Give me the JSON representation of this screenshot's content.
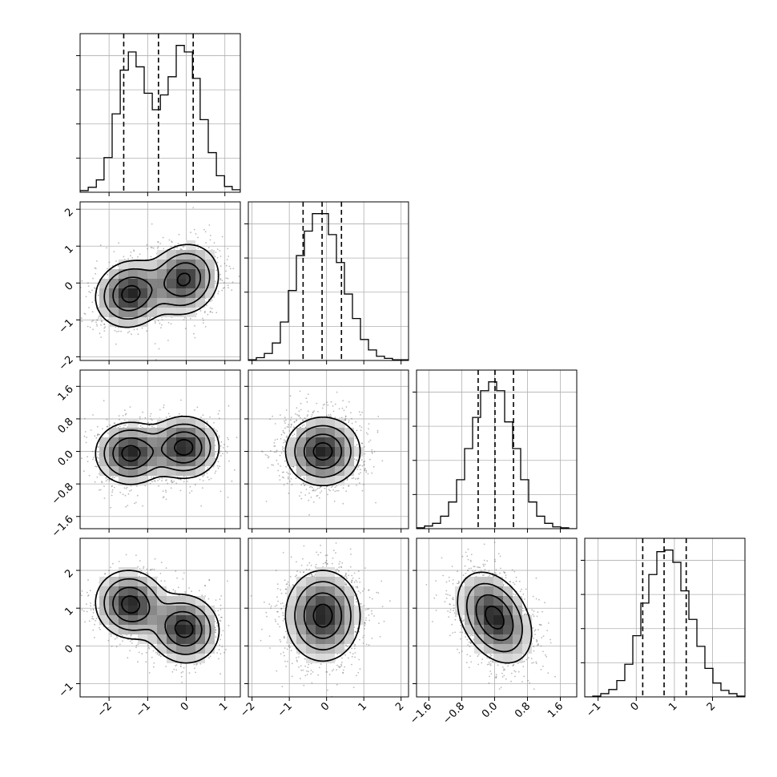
{
  "chart_data": {
    "type": "corner",
    "ndim": 4,
    "grid": true,
    "axes": [
      {
        "range": [
          -2.75,
          1.4
        ],
        "ticks": [
          -2,
          -1,
          0,
          1
        ],
        "tick_labels": [
          "−2",
          "−1",
          "0",
          "1"
        ],
        "quantiles": [
          -1.62,
          -0.72,
          0.18
        ],
        "hist_bins": [
          -2.75,
          -2.54,
          -2.33,
          -2.13,
          -1.92,
          -1.71,
          -1.5,
          -1.3,
          -1.09,
          -0.88,
          -0.67,
          -0.47,
          -0.26,
          -0.05,
          0.16,
          0.36,
          0.57,
          0.78,
          0.99,
          1.19,
          1.4
        ],
        "hist_counts": [
          2,
          6,
          15,
          42,
          95,
          148,
          170,
          152,
          120,
          100,
          118,
          140,
          178,
          170,
          138,
          88,
          48,
          20,
          7,
          3
        ]
      },
      {
        "range": [
          -2.1,
          2.2
        ],
        "ticks": [
          -2,
          -1,
          0,
          1,
          2
        ],
        "tick_labels": [
          "−2",
          "−1",
          "0",
          "1",
          "2"
        ],
        "quantiles": [
          -0.63,
          -0.12,
          0.4
        ],
        "hist_bins": [
          -2.1,
          -1.885,
          -1.67,
          -1.455,
          -1.24,
          -1.025,
          -0.81,
          -0.595,
          -0.38,
          -0.165,
          0.05,
          0.265,
          0.48,
          0.695,
          0.91,
          1.125,
          1.34,
          1.555,
          1.77,
          1.985,
          2.2
        ],
        "hist_counts": [
          1,
          4,
          10,
          25,
          55,
          100,
          150,
          185,
          210,
          210,
          180,
          140,
          95,
          60,
          30,
          15,
          6,
          3,
          1,
          1
        ]
      },
      {
        "range": [
          -1.9,
          2.0
        ],
        "ticks": [
          -1.6,
          -0.8,
          0.0,
          0.8,
          1.6
        ],
        "tick_labels": [
          "−1.6",
          "−0.8",
          "0.0",
          "0.8",
          "1.6"
        ],
        "quantiles": [
          -0.4,
          0.01,
          0.46
        ],
        "hist_bins": [
          -1.9,
          -1.705,
          -1.51,
          -1.315,
          -1.12,
          -0.925,
          -0.73,
          -0.535,
          -0.34,
          -0.145,
          0.05,
          0.245,
          0.44,
          0.635,
          0.83,
          1.025,
          1.22,
          1.415,
          1.61,
          1.805,
          2.0
        ],
        "hist_counts": [
          1,
          3,
          6,
          14,
          30,
          55,
          90,
          125,
          155,
          165,
          155,
          120,
          90,
          55,
          30,
          14,
          6,
          2,
          1,
          0
        ]
      },
      {
        "range": [
          -1.35,
          2.85
        ],
        "ticks": [
          -1,
          0,
          1,
          2
        ],
        "tick_labels": [
          "−1",
          "0",
          "1",
          "2"
        ],
        "quantiles": [
          0.17,
          0.73,
          1.31
        ],
        "hist_bins": [
          -1.35,
          -1.14,
          -0.93,
          -0.72,
          -0.51,
          -0.3,
          -0.09,
          0.12,
          0.33,
          0.54,
          0.75,
          0.96,
          1.17,
          1.38,
          1.59,
          1.8,
          2.01,
          2.22,
          2.43,
          2.64,
          2.85
        ],
        "hist_counts": [
          0,
          1,
          4,
          9,
          20,
          40,
          75,
          115,
          150,
          178,
          180,
          165,
          130,
          95,
          62,
          35,
          17,
          8,
          4,
          1
        ]
      }
    ],
    "pairs": [
      {
        "x_axis": 0,
        "y_axis": 1,
        "modes": [
          {
            "center": [
              -1.45,
              -0.3
            ],
            "sd": [
              0.45,
              0.45
            ],
            "corr": 0.1,
            "weight": 0.5
          },
          {
            "center": [
              -0.05,
              0.1
            ],
            "sd": [
              0.45,
              0.48
            ],
            "corr": 0.1,
            "weight": 0.5
          }
        ]
      },
      {
        "x_axis": 0,
        "y_axis": 2,
        "modes": [
          {
            "center": [
              -1.45,
              -0.05
            ],
            "sd": [
              0.45,
              0.38
            ],
            "corr": 0.0,
            "weight": 0.5
          },
          {
            "center": [
              -0.05,
              0.1
            ],
            "sd": [
              0.45,
              0.38
            ],
            "corr": 0.0,
            "weight": 0.5
          }
        ]
      },
      {
        "x_axis": 1,
        "y_axis": 2,
        "modes": [
          {
            "center": [
              -0.1,
              0.0
            ],
            "sd": [
              0.5,
              0.42
            ],
            "corr": 0.0,
            "weight": 1.0
          }
        ]
      },
      {
        "x_axis": 0,
        "y_axis": 3,
        "modes": [
          {
            "center": [
              -1.45,
              1.1
            ],
            "sd": [
              0.45,
              0.45
            ],
            "corr": -0.05,
            "weight": 0.5
          },
          {
            "center": [
              -0.05,
              0.45
            ],
            "sd": [
              0.45,
              0.45
            ],
            "corr": -0.05,
            "weight": 0.5
          }
        ]
      },
      {
        "x_axis": 1,
        "y_axis": 3,
        "modes": [
          {
            "center": [
              -0.1,
              0.8
            ],
            "sd": [
              0.5,
              0.6
            ],
            "corr": 0.0,
            "weight": 1.0
          }
        ]
      },
      {
        "x_axis": 2,
        "y_axis": 3,
        "modes": [
          {
            "center": [
              0.0,
              0.75
            ],
            "sd": [
              0.45,
              0.6
            ],
            "corr": -0.35,
            "weight": 1.0
          }
        ]
      }
    ],
    "contour_levels_sigma": [
      0.5,
      1.0,
      1.5,
      2.0
    ],
    "colors": {
      "ink": "#000000",
      "scatter": "#666666",
      "grid": "#b0b0b0",
      "frame": "#000000"
    }
  }
}
